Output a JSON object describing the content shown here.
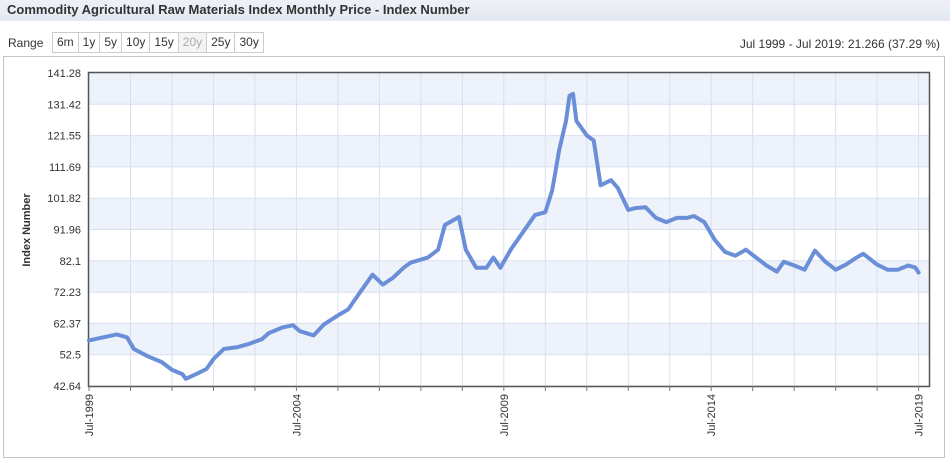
{
  "header": {
    "title": "Commodity Agricultural Raw Materials Index Monthly Price - Index Number",
    "range_label": "Range",
    "range_buttons": [
      "6m",
      "1y",
      "5y",
      "10y",
      "15y",
      "20y",
      "25y",
      "30y"
    ],
    "selected_range_index": 5,
    "summary": "Jul 1999 - Jul 2019: 21.266 (37.29 %)"
  },
  "chart_data": {
    "type": "line",
    "y_label": "Index Number",
    "color": "#6a8fd8",
    "grid": true,
    "x": [
      "1999-07",
      "2000-03",
      "2000-06",
      "2000-08",
      "2000-12",
      "2001-04",
      "2001-07",
      "2001-10",
      "2001-11",
      "2002-02",
      "2002-05",
      "2002-07",
      "2002-10",
      "2003-02",
      "2003-05",
      "2003-09",
      "2003-11",
      "2004-03",
      "2004-06",
      "2004-08",
      "2004-12",
      "2005-03",
      "2005-07",
      "2005-10",
      "2006-01",
      "2006-05",
      "2006-08",
      "2006-11",
      "2007-02",
      "2007-04",
      "2007-09",
      "2007-12",
      "2008-02",
      "2008-06",
      "2008-08",
      "2008-11",
      "2009-02",
      "2009-04",
      "2009-06",
      "2009-09",
      "2009-12",
      "2010-04",
      "2010-07",
      "2010-09",
      "2010-11",
      "2011-01",
      "2011-02",
      "2011-03",
      "2011-04",
      "2011-07",
      "2011-09",
      "2011-11",
      "2012-02",
      "2012-04",
      "2012-07",
      "2012-09",
      "2012-12",
      "2013-03",
      "2013-06",
      "2013-09",
      "2013-12",
      "2014-02",
      "2014-05",
      "2014-08",
      "2014-11",
      "2015-02",
      "2015-05",
      "2015-08",
      "2015-11",
      "2016-02",
      "2016-04",
      "2016-07",
      "2016-10",
      "2017-01",
      "2017-04",
      "2017-07",
      "2017-10",
      "2018-01",
      "2018-03",
      "2018-07",
      "2018-10",
      "2019-01",
      "2019-04",
      "2019-06",
      "2019-07"
    ],
    "values": [
      57.0,
      58.9,
      58.0,
      54.3,
      52.0,
      50.2,
      47.7,
      46.4,
      44.9,
      46.4,
      48.0,
      51.1,
      54.3,
      54.9,
      55.8,
      57.4,
      59.3,
      61.1,
      61.8,
      59.9,
      58.6,
      62.1,
      64.9,
      66.8,
      71.5,
      77.7,
      74.6,
      76.8,
      79.9,
      81.5,
      83.1,
      85.6,
      93.4,
      95.9,
      85.6,
      79.9,
      79.9,
      83.1,
      79.9,
      85.6,
      90.3,
      96.5,
      97.4,
      104.3,
      116.9,
      126.2,
      134.1,
      134.7,
      126.2,
      121.6,
      120.0,
      105.9,
      107.5,
      105.0,
      98.1,
      98.7,
      99.0,
      95.6,
      94.3,
      95.6,
      95.6,
      96.2,
      94.3,
      88.7,
      84.9,
      83.7,
      85.6,
      83.1,
      80.6,
      78.7,
      81.8,
      80.6,
      79.3,
      85.3,
      81.8,
      79.3,
      80.9,
      83.1,
      84.3,
      80.9,
      79.3,
      79.3,
      80.6,
      80.0,
      78.4
    ],
    "xlim": [
      "1999-07",
      "2019-10"
    ],
    "xticks": [
      {
        "value": "1999-07",
        "label": "Jul-1999"
      },
      {
        "value": "2000-07",
        "label": null
      },
      {
        "value": "2001-07",
        "label": null
      },
      {
        "value": "2002-07",
        "label": null
      },
      {
        "value": "2003-07",
        "label": null
      },
      {
        "value": "2004-07",
        "label": "Jul-2004"
      },
      {
        "value": "2005-07",
        "label": null
      },
      {
        "value": "2006-07",
        "label": null
      },
      {
        "value": "2007-07",
        "label": null
      },
      {
        "value": "2008-07",
        "label": null
      },
      {
        "value": "2009-07",
        "label": "Jul-2009"
      },
      {
        "value": "2010-07",
        "label": null
      },
      {
        "value": "2011-07",
        "label": null
      },
      {
        "value": "2012-07",
        "label": null
      },
      {
        "value": "2013-07",
        "label": null
      },
      {
        "value": "2014-07",
        "label": "Jul-2014"
      },
      {
        "value": "2015-07",
        "label": null
      },
      {
        "value": "2016-07",
        "label": null
      },
      {
        "value": "2017-07",
        "label": null
      },
      {
        "value": "2018-07",
        "label": null
      },
      {
        "value": "2019-07",
        "label": "Jul-2019"
      }
    ],
    "ylim": [
      42.64,
      141.28
    ],
    "yticks": [
      42.64,
      52.5,
      62.37,
      72.23,
      82.1,
      91.96,
      101.82,
      111.69,
      121.55,
      131.42,
      141.28
    ]
  }
}
